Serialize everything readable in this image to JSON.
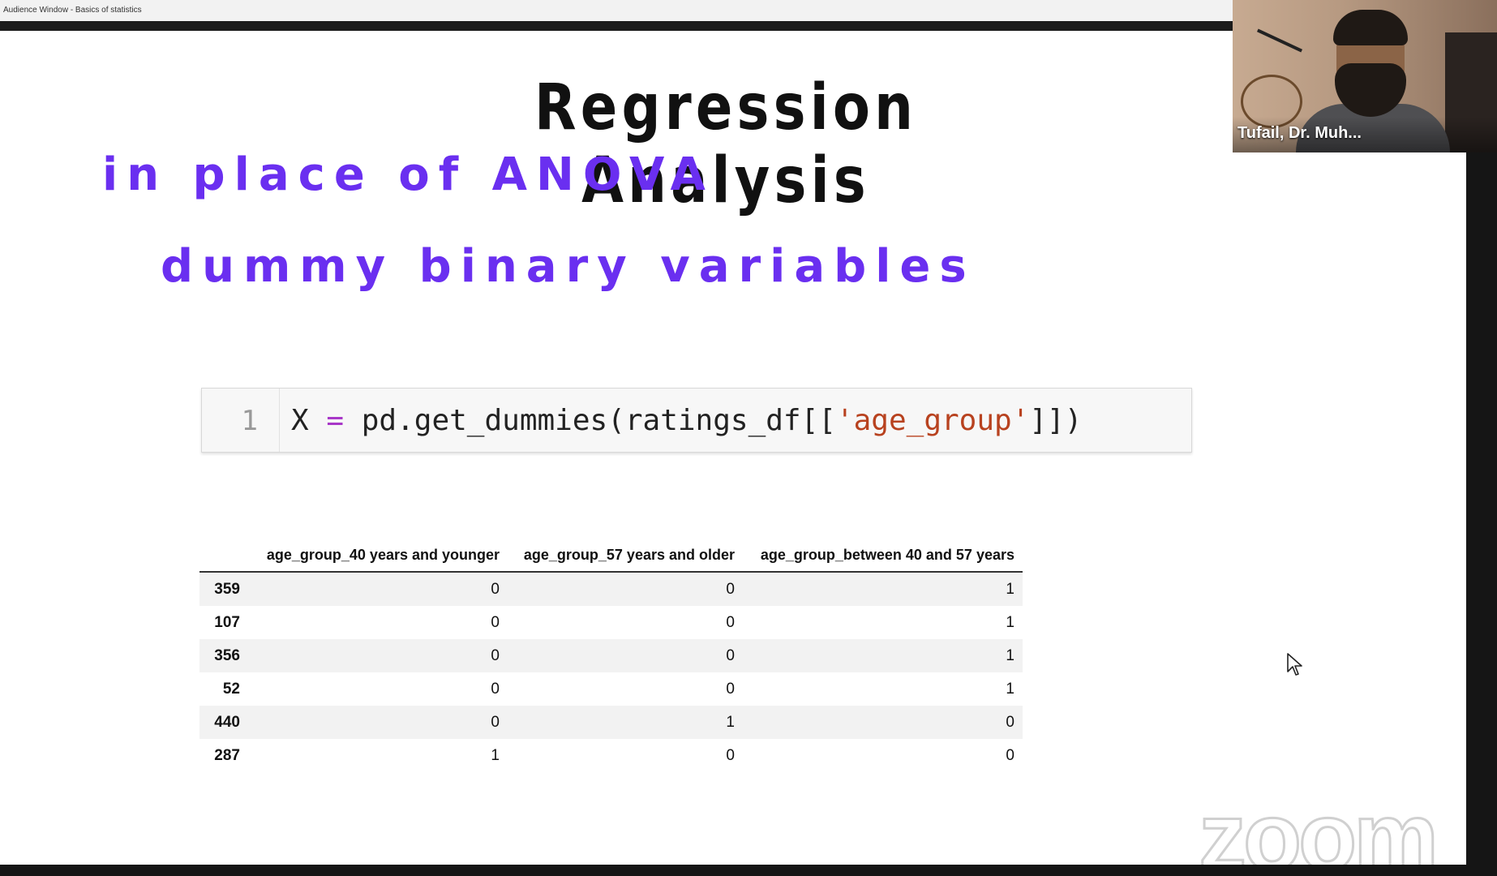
{
  "window": {
    "title": "Audience Window - Basics of statistics"
  },
  "slide": {
    "title": "Regression Analysis",
    "subtitle_1": "in place of ANOVA",
    "subtitle_2": "dummy binary variables",
    "accent_color": "#6a2ff0",
    "code_cell": {
      "line_number": "1",
      "code_x": "X",
      "code_eq": "=",
      "code_call": "pd.get_dummies(ratings_df[[",
      "code_string": "'age_group'",
      "code_close": "]])"
    },
    "table": {
      "columns": [
        "age_group_40 years and younger",
        "age_group_57 years and older",
        "age_group_between 40 and 57 years"
      ],
      "rows": [
        {
          "index": "359",
          "values": [
            "0",
            "0",
            "1"
          ]
        },
        {
          "index": "107",
          "values": [
            "0",
            "0",
            "1"
          ]
        },
        {
          "index": "356",
          "values": [
            "0",
            "0",
            "1"
          ]
        },
        {
          "index": "52",
          "values": [
            "0",
            "0",
            "1"
          ]
        },
        {
          "index": "440",
          "values": [
            "0",
            "1",
            "0"
          ]
        },
        {
          "index": "287",
          "values": [
            "1",
            "0",
            "0"
          ]
        }
      ]
    }
  },
  "zoom": {
    "logo_text": "zoom"
  },
  "video": {
    "participant_name": "Tufail, Dr. Muh..."
  }
}
